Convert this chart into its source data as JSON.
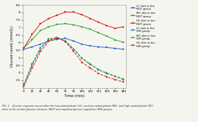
{
  "time": [
    0,
    15,
    30,
    45,
    60,
    75,
    90,
    105,
    120,
    135,
    150,
    165,
    180
  ],
  "series": [
    {
      "label": "LC diet in the\nNGT group",
      "color": "#3366cc",
      "linestyle": "solid",
      "values": [
        5.55,
        5.72,
        5.9,
        6.1,
        6.22,
        6.28,
        6.1,
        5.9,
        5.78,
        5.72,
        5.68,
        5.62,
        5.55
      ]
    },
    {
      "label": "MC diet in the\nNGT group",
      "color": "#33aa33",
      "linestyle": "solid",
      "values": [
        5.65,
        6.2,
        6.8,
        7.05,
        7.2,
        7.25,
        7.18,
        7.05,
        6.88,
        6.65,
        6.42,
        6.18,
        6.02
      ]
    },
    {
      "label": "HC diet in the\nNGT group",
      "color": "#dd2211",
      "linestyle": "solid",
      "values": [
        5.65,
        6.55,
        7.25,
        7.6,
        7.82,
        8.02,
        8.02,
        7.85,
        7.6,
        7.35,
        7.12,
        6.95,
        7.05
      ]
    },
    {
      "label": "LC diet in the\nIGR group",
      "color": "#3366cc",
      "linestyle": "dashed",
      "values": [
        3.2,
        4.5,
        5.6,
        6.2,
        6.3,
        6.1,
        5.55,
        4.95,
        4.55,
        4.2,
        3.95,
        3.75,
        3.55
      ]
    },
    {
      "label": "MC diet in the\nIGR group",
      "color": "#33aa33",
      "linestyle": "dashed",
      "values": [
        3.25,
        4.6,
        5.65,
        6.25,
        6.35,
        6.12,
        5.58,
        4.98,
        4.58,
        4.22,
        3.98,
        3.78,
        3.58
      ]
    },
    {
      "label": "HC diet in the\nIGR group",
      "color": "#dd2211",
      "linestyle": "dashed",
      "values": [
        3.1,
        4.3,
        5.4,
        6.1,
        6.3,
        6.08,
        5.4,
        4.7,
        4.3,
        3.95,
        3.72,
        3.55,
        3.38
      ]
    }
  ],
  "xlabel": "Time (min)",
  "ylabel": "Glucose Levels (mmol/L)",
  "ylim": [
    3.0,
    8.5
  ],
  "yticks": [
    3.5,
    4.0,
    4.5,
    5.0,
    5.5,
    6.0,
    6.5,
    7.0,
    7.5,
    8.0,
    8.5
  ],
  "figcaption": "FIG. 1.   Glucose response curves after the low-carbohydrate (LC), medium-carbohydrate (MC), and high-carbohydrate (HC)\ndiets in the normal glucose tolerance (NGT) and impaired glucose regulation (IGR) groups.",
  "background_color": "#f5f5f0"
}
